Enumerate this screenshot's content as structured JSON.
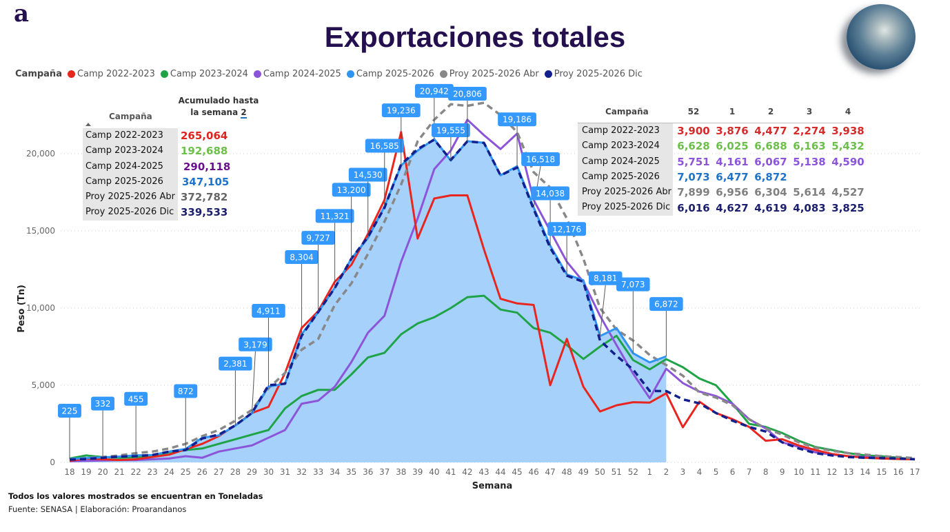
{
  "header": {
    "logo_text": "a",
    "title": "Exportaciones totales",
    "globe_icon": "globe-icon"
  },
  "legend": {
    "title": "Campaña",
    "items": [
      {
        "label": "Camp 2022-2023",
        "color": "#e8251f"
      },
      {
        "label": "Camp 2023-2024",
        "color": "#1ea346"
      },
      {
        "label": "Camp 2024-2025",
        "color": "#8c55d9"
      },
      {
        "label": "Camp 2025-2026",
        "color": "#2f94f2"
      },
      {
        "label": "Proy 2025-2026 Abr",
        "color": "#888888"
      },
      {
        "label": "Proy 2025-2026 Dic",
        "color": "#12208e"
      }
    ]
  },
  "accumulated_table": {
    "col_header": "Campaña",
    "value_header_line1": "Acumulado hasta",
    "value_header_line2": "la semana",
    "week": "2",
    "rows": [
      {
        "name": "Camp 2022-2023",
        "value": "265,064",
        "color": "#e0221d"
      },
      {
        "name": "Camp 2023-2024",
        "value": "192,688",
        "color": "#6cbf4a"
      },
      {
        "name": "Camp 2024-2025",
        "value": "290,118",
        "color": "#6a0f8e"
      },
      {
        "name": "Camp 2025-2026",
        "value": "347,105",
        "color": "#1f73c8"
      },
      {
        "name": "Proy 2025-2026 Abr",
        "value": "372,782",
        "color": "#666666"
      },
      {
        "name": "Proy 2025-2026 Dic",
        "value": "339,533",
        "color": "#1b1f6e"
      }
    ]
  },
  "weekly_table": {
    "col_header": "Campaña",
    "weeks": [
      "52",
      "1",
      "2",
      "3",
      "4"
    ],
    "rows": [
      {
        "name": "Camp 2022-2023",
        "values": [
          "3,900",
          "3,876",
          "4,477",
          "2,274",
          "3,938"
        ],
        "color": "#d42b2b"
      },
      {
        "name": "Camp 2023-2024",
        "values": [
          "6,628",
          "6,025",
          "6,688",
          "6,163",
          "5,432"
        ],
        "color": "#6cbf4a"
      },
      {
        "name": "Camp 2024-2025",
        "values": [
          "5,751",
          "4,161",
          "6,067",
          "5,138",
          "4,590"
        ],
        "color": "#8c55d9"
      },
      {
        "name": "Camp 2025-2026",
        "values": [
          "7,073",
          "6,477",
          "6,872",
          "",
          ""
        ],
        "color": "#1f73c8"
      },
      {
        "name": "Proy 2025-2026 Abr",
        "values": [
          "7,899",
          "6,956",
          "6,304",
          "5,614",
          "4,527"
        ],
        "color": "#808080"
      },
      {
        "name": "Proy 2025-2026 Dic",
        "values": [
          "6,016",
          "4,627",
          "4,619",
          "4,083",
          "3,825"
        ],
        "color": "#1b1f6e"
      }
    ]
  },
  "footer": {
    "note": "Todos los valores mostrados se encuentran en Toneladas",
    "source": "Fuente: SENASA | Elaboración: Proarandanos"
  },
  "chart_data": {
    "type": "line",
    "title": "Exportaciones totales",
    "xlabel": "Semana",
    "ylabel": "Peso (Tn)",
    "ylim": [
      0,
      22500
    ],
    "yticks": [
      0,
      5000,
      10000,
      15000,
      20000
    ],
    "ytick_labels": [
      "0",
      "5,000",
      "10,000",
      "15,000",
      "20,000"
    ],
    "grid": "horizontal dotted",
    "legend_position": "top-left",
    "x": [
      "18",
      "19",
      "20",
      "21",
      "22",
      "23",
      "24",
      "25",
      "26",
      "27",
      "28",
      "29",
      "30",
      "31",
      "32",
      "33",
      "34",
      "35",
      "36",
      "37",
      "38",
      "39",
      "40",
      "41",
      "42",
      "43",
      "44",
      "45",
      "46",
      "47",
      "48",
      "49",
      "50",
      "51",
      "52",
      "1",
      "2",
      "3",
      "4",
      "5",
      "6",
      "7",
      "8",
      "9",
      "10",
      "11",
      "12",
      "13",
      "14",
      "15",
      "16",
      "17"
    ],
    "series": [
      {
        "name": "Camp 2022-2023",
        "color": "#e8251f",
        "dashed": false,
        "values": [
          100,
          250,
          200,
          150,
          200,
          350,
          500,
          850,
          1200,
          1700,
          2400,
          3200,
          3600,
          5800,
          8700,
          9800,
          11700,
          12800,
          14800,
          17000,
          21400,
          14500,
          17100,
          17300,
          17300,
          13800,
          10600,
          10300,
          10200,
          5000,
          8000,
          4900,
          3300,
          3700,
          3900,
          3876,
          4477,
          2274,
          3938,
          3200,
          2800,
          2300,
          1400,
          1500,
          1100,
          800,
          550,
          400,
          300,
          250,
          220,
          200
        ]
      },
      {
        "name": "Camp 2023-2024",
        "color": "#1ea346",
        "dashed": false,
        "values": [
          250,
          450,
          350,
          300,
          350,
          450,
          650,
          800,
          900,
          1200,
          1500,
          1800,
          2100,
          3500,
          4300,
          4700,
          4700,
          5700,
          6800,
          7100,
          8300,
          9000,
          9400,
          10000,
          10700,
          10800,
          9900,
          9700,
          8700,
          8400,
          7600,
          6700,
          7500,
          8200,
          6628,
          6025,
          6688,
          6163,
          5432,
          5000,
          3800,
          2500,
          2300,
          1900,
          1400,
          1000,
          800,
          600,
          450,
          400,
          300,
          200
        ]
      },
      {
        "name": "Camp 2024-2025",
        "color": "#8c55d9",
        "dashed": false,
        "values": [
          80,
          100,
          120,
          150,
          150,
          200,
          250,
          400,
          300,
          700,
          900,
          1100,
          1600,
          2100,
          3800,
          4000,
          4900,
          6500,
          8400,
          9500,
          13000,
          15800,
          19000,
          20200,
          22200,
          21200,
          20300,
          21300,
          17000,
          15000,
          13000,
          11700,
          9500,
          7600,
          5751,
          4161,
          6067,
          5138,
          4590,
          4300,
          3800,
          2800,
          2200,
          1300,
          1000,
          650,
          500,
          400,
          350,
          300,
          250,
          220
        ]
      },
      {
        "name": "Camp 2025-2026",
        "color": "#2f94f2",
        "dashed": false,
        "area_fill": "#a6d1fb",
        "values": [
          225,
          280,
          332,
          380,
          455,
          480,
          700,
          872,
          1600,
          1750,
          2381,
          3179,
          4911,
          5100,
          8304,
          9727,
          11321,
          13200,
          14530,
          16585,
          19236,
          20200,
          20942,
          19555,
          20806,
          20700,
          18600,
          19186,
          16518,
          14038,
          12176,
          11800,
          8181,
          8700,
          7073,
          6477,
          6872
        ]
      },
      {
        "name": "Proy 2025-2026 Abr",
        "color": "#888888",
        "dashed": true,
        "values": [
          200,
          300,
          350,
          450,
          600,
          700,
          900,
          1200,
          1700,
          2100,
          2700,
          3400,
          4800,
          5800,
          7300,
          8000,
          10200,
          11600,
          13500,
          15600,
          18000,
          20800,
          22200,
          23200,
          23100,
          23300,
          22500,
          21400,
          18800,
          17800,
          15800,
          13200,
          10000,
          8600,
          7899,
          6956,
          6304,
          5614,
          4527,
          4200,
          3700,
          2800,
          2200,
          1800,
          1300,
          950,
          750,
          600,
          500,
          400,
          350,
          280
        ]
      },
      {
        "name": "Proy 2025-2026 Dic",
        "color": "#12208e",
        "dashed": true,
        "values": [
          180,
          220,
          300,
          380,
          400,
          480,
          700,
          800,
          1550,
          1800,
          2400,
          3200,
          5000,
          5100,
          8200,
          9750,
          11300,
          13200,
          14600,
          16500,
          19300,
          20300,
          20900,
          19600,
          20800,
          20700,
          18600,
          19100,
          16400,
          13900,
          12100,
          11700,
          7900,
          6900,
          6016,
          4627,
          4619,
          4083,
          3825,
          3200,
          2700,
          2300,
          2000,
          1300,
          900,
          600,
          450,
          350,
          300,
          280,
          250,
          200
        ]
      }
    ],
    "data_labels": {
      "series": "Camp 2025-2026",
      "points": [
        {
          "week": "18",
          "text": "225"
        },
        {
          "week": "20",
          "text": "332"
        },
        {
          "week": "22",
          "text": "455"
        },
        {
          "week": "25",
          "text": "872"
        },
        {
          "week": "28",
          "text": "2,381"
        },
        {
          "week": "29",
          "text": "3,179"
        },
        {
          "week": "30",
          "text": "4,911"
        },
        {
          "week": "32",
          "text": "8,304"
        },
        {
          "week": "33",
          "text": "9,727"
        },
        {
          "week": "34",
          "text": "11,321"
        },
        {
          "week": "35",
          "text": "13,200"
        },
        {
          "week": "36",
          "text": "14,530"
        },
        {
          "week": "37",
          "text": "16,585"
        },
        {
          "week": "38",
          "text": "19,236"
        },
        {
          "week": "40",
          "text": "20,942"
        },
        {
          "week": "41",
          "text": "19,555"
        },
        {
          "week": "42",
          "text": "20,806"
        },
        {
          "week": "45",
          "text": "19,186"
        },
        {
          "week": "46",
          "text": "16,518"
        },
        {
          "week": "47",
          "text": "14,038"
        },
        {
          "week": "48",
          "text": "12,176"
        },
        {
          "week": "50",
          "text": "8,181"
        },
        {
          "week": "52",
          "text": "7,073"
        },
        {
          "week": "2",
          "text": "6,872"
        }
      ]
    }
  }
}
